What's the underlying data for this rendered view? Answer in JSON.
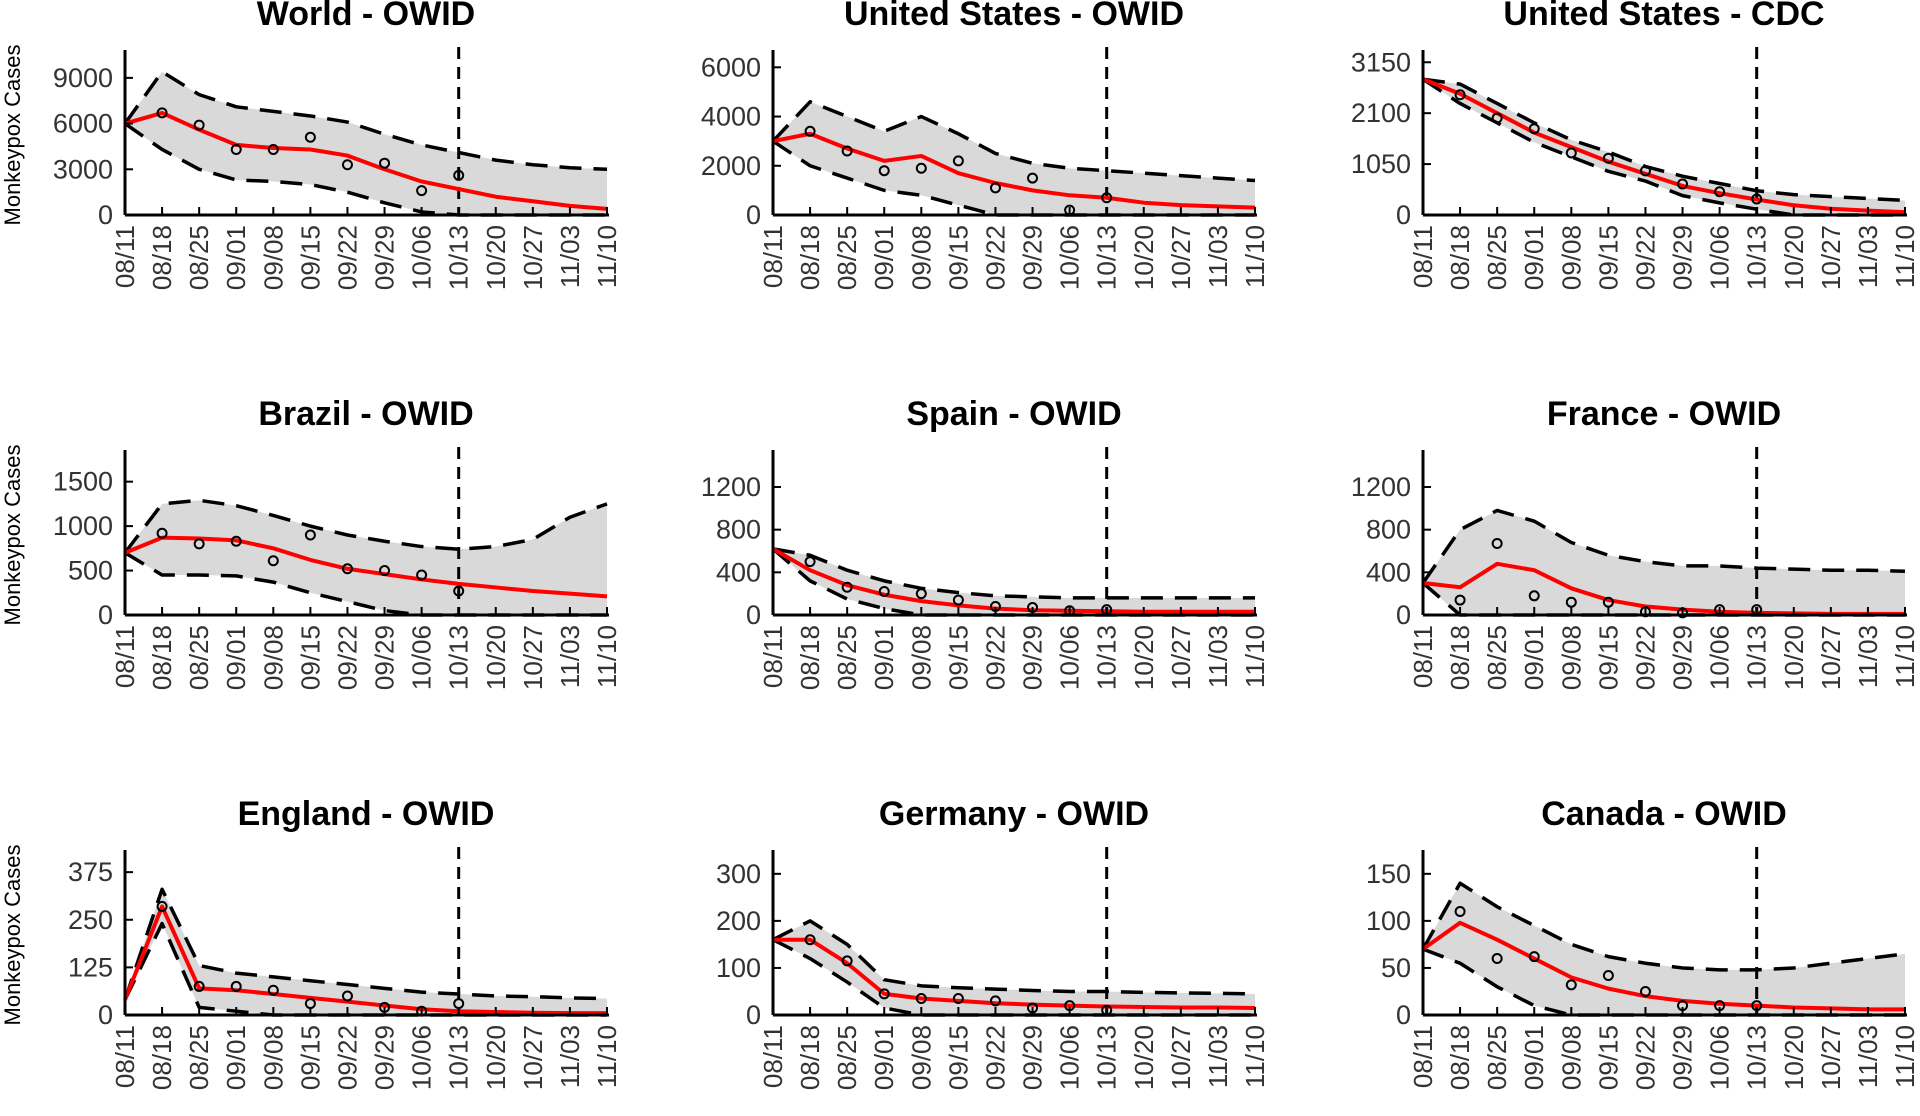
{
  "figure": {
    "ylabel": "Monkeypox Cases",
    "style": {
      "band_color": "#d9d9d9",
      "line_color": "#ff0000",
      "bound_color": "#000000",
      "point_color": "#000000",
      "axis_color": "#000000"
    }
  },
  "chart_data": [
    {
      "type": "line",
      "title": "World - OWID",
      "xlabel": "",
      "ylabel": "Monkeypox Cases",
      "x": [
        "08/11",
        "08/18",
        "08/25",
        "09/01",
        "09/08",
        "09/15",
        "09/22",
        "09/29",
        "10/06",
        "10/13",
        "10/20",
        "10/27",
        "11/03",
        "11/10"
      ],
      "ylim": [
        0,
        10500
      ],
      "yticks": [
        0,
        3000,
        6000,
        9000
      ],
      "forecast_start": "10/13",
      "series": [
        {
          "name": "fit",
          "values": [
            6000,
            6700,
            5600,
            4600,
            4400,
            4300,
            3900,
            3000,
            2200,
            1700,
            1200,
            900,
            600,
            400
          ]
        },
        {
          "name": "upper",
          "values": [
            6000,
            9400,
            7900,
            7100,
            6800,
            6500,
            6100,
            5300,
            4600,
            4100,
            3600,
            3300,
            3100,
            3000
          ]
        },
        {
          "name": "lower",
          "values": [
            6000,
            4300,
            3000,
            2300,
            2200,
            2000,
            1500,
            800,
            200,
            0,
            0,
            0,
            0,
            0
          ]
        },
        {
          "name": "observed",
          "values": [
            6000,
            6700,
            5900,
            4300,
            4300,
            5100,
            3300,
            3400,
            1600,
            2600,
            null,
            null,
            null,
            null
          ]
        }
      ]
    },
    {
      "type": "line",
      "title": "United States - OWID",
      "xlabel": "",
      "ylabel": "",
      "x": [
        "08/11",
        "08/18",
        "08/25",
        "09/01",
        "09/08",
        "09/15",
        "09/22",
        "09/29",
        "10/06",
        "10/13",
        "10/20",
        "10/27",
        "11/03",
        "11/10"
      ],
      "ylim": [
        0,
        6500
      ],
      "yticks": [
        0,
        2000,
        4000,
        6000
      ],
      "forecast_start": "10/13",
      "series": [
        {
          "name": "fit",
          "values": [
            3000,
            3300,
            2700,
            2200,
            2400,
            1700,
            1300,
            1000,
            800,
            700,
            500,
            400,
            350,
            300
          ]
        },
        {
          "name": "upper",
          "values": [
            3000,
            4600,
            4000,
            3400,
            4000,
            3300,
            2500,
            2100,
            1900,
            1800,
            1700,
            1600,
            1500,
            1400
          ]
        },
        {
          "name": "lower",
          "values": [
            3000,
            2000,
            1500,
            1000,
            800,
            400,
            0,
            0,
            0,
            0,
            0,
            0,
            0,
            0
          ]
        },
        {
          "name": "observed",
          "values": [
            3000,
            3400,
            2600,
            1800,
            1900,
            2200,
            1100,
            1500,
            200,
            700,
            null,
            null,
            null,
            null
          ]
        }
      ]
    },
    {
      "type": "line",
      "title": "United States - CDC",
      "xlabel": "",
      "ylabel": "",
      "x": [
        "08/11",
        "08/18",
        "08/25",
        "09/01",
        "09/08",
        "09/15",
        "09/22",
        "09/29",
        "10/06",
        "10/13",
        "10/20",
        "10/27",
        "11/03",
        "11/10"
      ],
      "ylim": [
        0,
        3300
      ],
      "yticks": [
        0,
        1050,
        2100,
        3150
      ],
      "forecast_start": "10/13",
      "series": [
        {
          "name": "fit",
          "values": [
            2800,
            2500,
            2100,
            1700,
            1400,
            1100,
            850,
            600,
            450,
            320,
            200,
            130,
            90,
            60
          ]
        },
        {
          "name": "upper",
          "values": [
            2800,
            2700,
            2300,
            1900,
            1550,
            1300,
            1000,
            800,
            650,
            500,
            420,
            380,
            340,
            300
          ]
        },
        {
          "name": "lower",
          "values": [
            2800,
            2300,
            1900,
            1500,
            1200,
            900,
            700,
            400,
            250,
            120,
            0,
            0,
            0,
            0
          ]
        },
        {
          "name": "observed",
          "values": [
            2800,
            2480,
            2000,
            1780,
            1280,
            1170,
            910,
            640,
            480,
            330,
            null,
            null,
            null,
            null
          ]
        }
      ]
    },
    {
      "type": "line",
      "title": "Brazil - OWID",
      "xlabel": "",
      "ylabel": "Monkeypox Cases",
      "x": [
        "08/11",
        "08/18",
        "08/25",
        "09/01",
        "09/08",
        "09/15",
        "09/22",
        "09/29",
        "10/06",
        "10/13",
        "10/20",
        "10/27",
        "11/03",
        "11/10"
      ],
      "ylim": [
        0,
        1800
      ],
      "yticks": [
        0,
        500,
        1000,
        1500
      ],
      "forecast_start": "10/13",
      "series": [
        {
          "name": "fit",
          "values": [
            700,
            870,
            860,
            840,
            750,
            620,
            520,
            460,
            400,
            350,
            310,
            270,
            240,
            210
          ]
        },
        {
          "name": "upper",
          "values": [
            700,
            1250,
            1290,
            1230,
            1120,
            1000,
            900,
            830,
            770,
            740,
            770,
            850,
            1100,
            1250
          ]
        },
        {
          "name": "lower",
          "values": [
            700,
            450,
            450,
            440,
            370,
            250,
            150,
            50,
            0,
            0,
            0,
            0,
            0,
            0
          ]
        },
        {
          "name": "observed",
          "values": [
            700,
            920,
            800,
            830,
            610,
            900,
            520,
            500,
            450,
            270,
            null,
            null,
            null,
            null
          ]
        }
      ]
    },
    {
      "type": "line",
      "title": "Spain - OWID",
      "xlabel": "",
      "ylabel": "",
      "x": [
        "08/11",
        "08/18",
        "08/25",
        "09/01",
        "09/08",
        "09/15",
        "09/22",
        "09/29",
        "10/06",
        "10/13",
        "10/20",
        "10/27",
        "11/03",
        "11/10"
      ],
      "ylim": [
        0,
        1500
      ],
      "yticks": [
        0,
        400,
        800,
        1200
      ],
      "forecast_start": "10/13",
      "series": [
        {
          "name": "fit",
          "values": [
            620,
            420,
            280,
            190,
            130,
            90,
            60,
            45,
            40,
            35,
            30,
            30,
            30,
            30
          ]
        },
        {
          "name": "upper",
          "values": [
            620,
            560,
            420,
            320,
            250,
            210,
            180,
            170,
            160,
            160,
            160,
            160,
            160,
            160
          ]
        },
        {
          "name": "lower",
          "values": [
            620,
            320,
            150,
            60,
            0,
            0,
            0,
            0,
            0,
            0,
            0,
            0,
            0,
            0
          ]
        },
        {
          "name": "observed",
          "values": [
            620,
            500,
            260,
            220,
            200,
            140,
            80,
            70,
            40,
            50,
            null,
            null,
            null,
            null
          ]
        }
      ]
    },
    {
      "type": "line",
      "title": "France - OWID",
      "xlabel": "",
      "ylabel": "",
      "x": [
        "08/11",
        "08/18",
        "08/25",
        "09/01",
        "09/08",
        "09/15",
        "09/22",
        "09/29",
        "10/06",
        "10/13",
        "10/20",
        "10/27",
        "11/03",
        "11/10"
      ],
      "ylim": [
        0,
        1500
      ],
      "yticks": [
        0,
        400,
        800,
        1200
      ],
      "forecast_start": "10/13",
      "series": [
        {
          "name": "fit",
          "values": [
            300,
            260,
            480,
            420,
            250,
            140,
            80,
            50,
            30,
            20,
            15,
            10,
            10,
            10
          ]
        },
        {
          "name": "upper",
          "values": [
            300,
            800,
            980,
            880,
            680,
            560,
            500,
            460,
            460,
            440,
            430,
            420,
            420,
            410
          ]
        },
        {
          "name": "lower",
          "values": [
            300,
            0,
            0,
            0,
            0,
            0,
            0,
            0,
            0,
            0,
            0,
            0,
            0,
            0
          ]
        },
        {
          "name": "observed",
          "values": [
            300,
            140,
            670,
            180,
            120,
            120,
            30,
            20,
            50,
            50,
            null,
            null,
            null,
            null
          ]
        }
      ]
    },
    {
      "type": "line",
      "title": "England - OWID",
      "xlabel": "",
      "ylabel": "Monkeypox Cases",
      "x": [
        "08/11",
        "08/18",
        "08/25",
        "09/01",
        "09/08",
        "09/15",
        "09/22",
        "09/29",
        "10/06",
        "10/13",
        "10/20",
        "10/27",
        "11/03",
        "11/10"
      ],
      "ylim": [
        0,
        420
      ],
      "yticks": [
        0,
        125,
        250,
        375
      ],
      "forecast_start": "10/13",
      "series": [
        {
          "name": "fit",
          "values": [
            40,
            285,
            70,
            65,
            55,
            45,
            35,
            25,
            15,
            10,
            8,
            6,
            5,
            5
          ]
        },
        {
          "name": "upper",
          "values": [
            40,
            330,
            130,
            110,
            100,
            90,
            80,
            70,
            60,
            55,
            50,
            48,
            45,
            43
          ]
        },
        {
          "name": "lower",
          "values": [
            40,
            240,
            20,
            10,
            0,
            0,
            0,
            0,
            0,
            0,
            0,
            0,
            0,
            0
          ]
        },
        {
          "name": "observed",
          "values": [
            40,
            285,
            75,
            75,
            65,
            30,
            50,
            20,
            10,
            30,
            null,
            null,
            null,
            null
          ]
        }
      ]
    },
    {
      "type": "line",
      "title": "Germany - OWID",
      "xlabel": "",
      "ylabel": "",
      "x": [
        "08/11",
        "08/18",
        "08/25",
        "09/01",
        "09/08",
        "09/15",
        "09/22",
        "09/29",
        "10/06",
        "10/13",
        "10/20",
        "10/27",
        "11/03",
        "11/10"
      ],
      "ylim": [
        0,
        340
      ],
      "yticks": [
        0,
        100,
        200,
        300
      ],
      "forecast_start": "10/13",
      "series": [
        {
          "name": "fit",
          "values": [
            160,
            160,
            110,
            45,
            35,
            30,
            25,
            22,
            20,
            18,
            17,
            16,
            16,
            15
          ]
        },
        {
          "name": "upper",
          "values": [
            160,
            200,
            150,
            75,
            62,
            58,
            55,
            52,
            50,
            50,
            48,
            47,
            46,
            45
          ]
        },
        {
          "name": "lower",
          "values": [
            160,
            120,
            70,
            15,
            0,
            0,
            0,
            0,
            0,
            0,
            0,
            0,
            0,
            0
          ]
        },
        {
          "name": "observed",
          "values": [
            160,
            160,
            115,
            45,
            35,
            35,
            30,
            15,
            20,
            10,
            null,
            null,
            null,
            null
          ]
        }
      ]
    },
    {
      "type": "line",
      "title": "Canada - OWID",
      "xlabel": "",
      "ylabel": "",
      "x": [
        "08/11",
        "08/18",
        "08/25",
        "09/01",
        "09/08",
        "09/15",
        "09/22",
        "09/29",
        "10/06",
        "10/13",
        "10/20",
        "10/27",
        "11/03",
        "11/10"
      ],
      "ylim": [
        0,
        170
      ],
      "yticks": [
        0,
        50,
        100,
        150
      ],
      "forecast_start": "10/13",
      "series": [
        {
          "name": "fit",
          "values": [
            70,
            98,
            80,
            60,
            40,
            28,
            20,
            15,
            12,
            10,
            8,
            7,
            6,
            6
          ]
        },
        {
          "name": "upper",
          "values": [
            70,
            140,
            115,
            95,
            75,
            62,
            55,
            50,
            48,
            48,
            50,
            55,
            60,
            65
          ]
        },
        {
          "name": "lower",
          "values": [
            70,
            55,
            30,
            10,
            0,
            0,
            0,
            0,
            0,
            0,
            0,
            0,
            0,
            0
          ]
        },
        {
          "name": "observed",
          "values": [
            70,
            110,
            60,
            62,
            32,
            42,
            25,
            10,
            10,
            10,
            null,
            null,
            null,
            null
          ]
        }
      ]
    }
  ]
}
